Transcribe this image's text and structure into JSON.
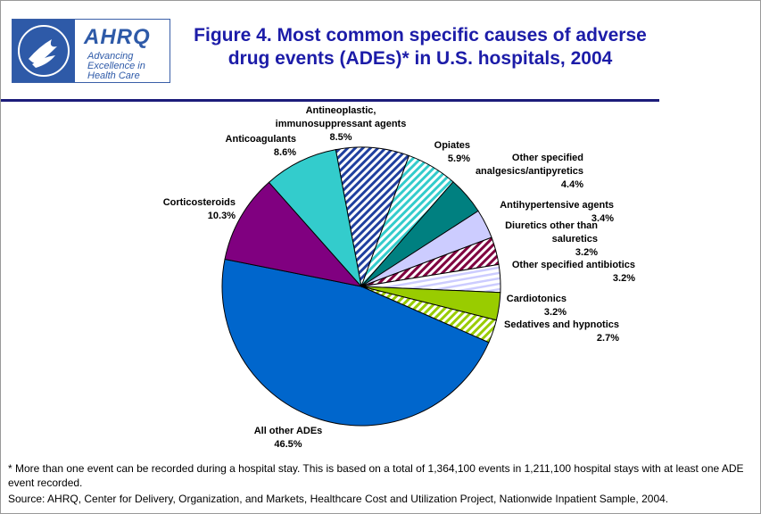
{
  "logo": {
    "name": "AHRQ",
    "tagline": "Advancing Excellence in Health Care"
  },
  "chart_data": {
    "type": "pie",
    "title": "Figure 4. Most common specific causes of adverse drug events (ADEs)* in U.S. hospitals, 2004",
    "categories": [
      "Antineoplastic, immunosuppressant agents",
      "Opiates",
      "Other specified analgesics/antipyretics",
      "Antihypertensive agents",
      "Diuretics other than saluretics",
      "Other specified antibiotics",
      "Cardiotonics",
      "Sedatives and hypnotics",
      "All other ADEs",
      "Corticosteroids",
      "Anticoagulants"
    ],
    "values": [
      8.5,
      5.9,
      4.4,
      3.4,
      3.2,
      3.2,
      3.2,
      2.7,
      46.5,
      10.3,
      8.6
    ],
    "value_labels": [
      "8.5%",
      "5.9%",
      "4.4%",
      "3.4%",
      "3.2%",
      "3.2%",
      "3.2%",
      "2.7%",
      "46.5%",
      "10.3%",
      "8.6%"
    ],
    "colors": [
      "#1f3f9f",
      "#33cccc",
      "#008080",
      "#ccccff",
      "#800040",
      "#ccccff",
      "#99cc00",
      "#99cc00",
      "#0066cc",
      "#800080",
      "#33cccc"
    ],
    "patterns": [
      "stripes",
      "stripes",
      "solid",
      "solid",
      "stripes",
      "stripes-h",
      "solid",
      "stripes",
      "solid",
      "solid",
      "solid"
    ],
    "footnote": "* More than one event can be recorded during a hospital stay. This is based on a total of 1,364,100 events in 1,211,100 hospital stays with at least one ADE event recorded.",
    "source": "Source: AHRQ, Center for Delivery, Organization, and Markets, Healthcare Cost and Utilization Project, Nationwide Inpatient Sample, 2004."
  }
}
